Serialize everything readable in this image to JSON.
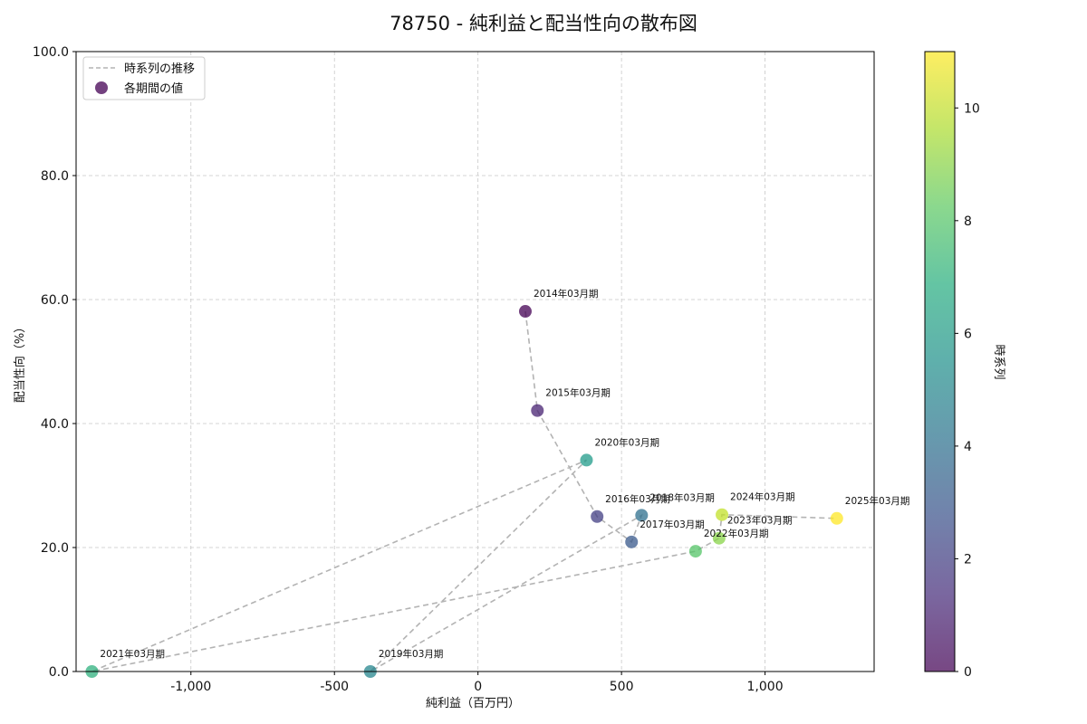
{
  "chart_data": {
    "type": "scatter",
    "title": "78750 - 純利益と配当性向の散布図",
    "xlabel": "純利益（百万円）",
    "ylabel": "配当性向（%）",
    "xlim": [
      -1400,
      1380
    ],
    "ylim": [
      0,
      100
    ],
    "xticks": [
      -1000,
      -500,
      0,
      500,
      1000
    ],
    "xtick_labels": [
      "-1,000",
      "-500",
      "0",
      "500",
      "1,000"
    ],
    "yticks": [
      0,
      20,
      40,
      60,
      80,
      100
    ],
    "ytick_labels": [
      "0.0",
      "20.0",
      "40.0",
      "60.0",
      "80.0",
      "100.0"
    ],
    "grid": true,
    "legend": {
      "position": "top-left",
      "line_label": "時系列の推移",
      "point_label": "各期間の値"
    },
    "colorbar": {
      "label": "時系列",
      "range": [
        0,
        11
      ],
      "ticks": [
        0,
        2,
        4,
        6,
        8,
        10
      ],
      "tick_labels": [
        "0",
        "2",
        "4",
        "6",
        "8",
        "10"
      ],
      "colormap": "viridis"
    },
    "points": [
      {
        "label": "2014年03月期",
        "x": 165,
        "y": 58.1,
        "t": 0
      },
      {
        "label": "2015年03月期",
        "x": 207,
        "y": 42.1,
        "t": 1
      },
      {
        "label": "2016年03月期",
        "x": 415,
        "y": 25.0,
        "t": 2
      },
      {
        "label": "2017年03月期",
        "x": 535,
        "y": 20.9,
        "t": 3
      },
      {
        "label": "2018年03月期",
        "x": 570,
        "y": 25.2,
        "t": 4
      },
      {
        "label": "2019年03月期",
        "x": -375,
        "y": 0.0,
        "t": 5
      },
      {
        "label": "2020年03月期",
        "x": 378,
        "y": 34.1,
        "t": 6
      },
      {
        "label": "2021年03月期",
        "x": -1345,
        "y": 0.0,
        "t": 7
      },
      {
        "label": "2022年03月期",
        "x": 758,
        "y": 19.4,
        "t": 8
      },
      {
        "label": "2023年03月期",
        "x": 840,
        "y": 21.5,
        "t": 9
      },
      {
        "label": "2024年03月期",
        "x": 850,
        "y": 25.3,
        "t": 10
      },
      {
        "label": "2025年03月期",
        "x": 1250,
        "y": 24.7,
        "t": 11
      }
    ],
    "colors": {
      "line": "#b3b3b3",
      "grid": "#c8c8c8",
      "legend_marker": "#440154"
    }
  }
}
